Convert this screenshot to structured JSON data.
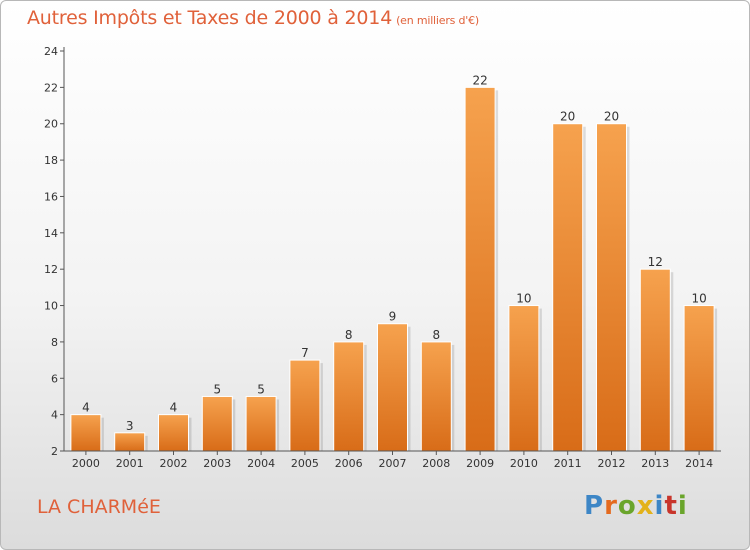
{
  "title": "Autres Impôts et Taxes de 2000 à 2014",
  "title_unit": "(en milliers d'€)",
  "place_label": "LA CHARMéE",
  "logo_text": "Proxiti",
  "colors": {
    "title": "#e0613a",
    "bar_top": "#f6a24e",
    "bar_bottom": "#d86c18",
    "logo": [
      "#3d86c6",
      "#e46a1e",
      "#6aa52b",
      "#e3b21a",
      "#3d86c6",
      "#c8352b",
      "#6aa52b"
    ]
  },
  "chart_data": {
    "type": "bar",
    "categories": [
      "2000",
      "2001",
      "2002",
      "2003",
      "2004",
      "2005",
      "2006",
      "2007",
      "2008",
      "2009",
      "2010",
      "2011",
      "2012",
      "2013",
      "2014"
    ],
    "values": [
      4,
      3,
      4,
      5,
      5,
      7,
      8,
      9,
      8,
      22,
      10,
      20,
      20,
      12,
      10
    ],
    "ylim": [
      2,
      24
    ],
    "yticks": [
      2,
      4,
      6,
      8,
      10,
      12,
      14,
      16,
      18,
      20,
      22,
      24
    ],
    "grid": false,
    "data_labels": true
  }
}
